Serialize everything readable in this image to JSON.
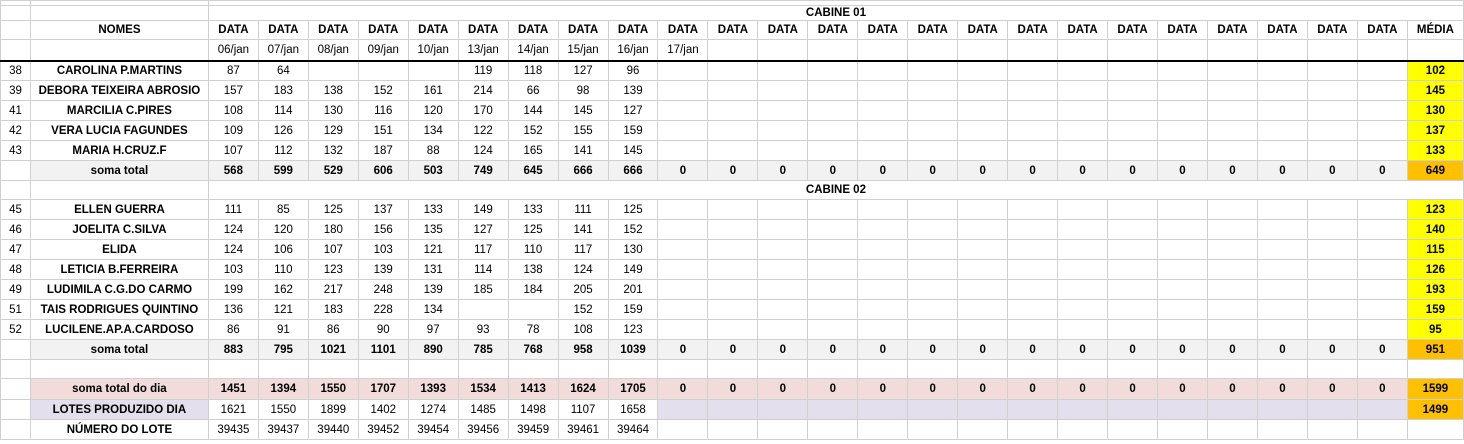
{
  "title_row": "",
  "cabine1_title": "CABINE 01",
  "cabine2_title": "CABINE 02",
  "nomes_header": "NOMES",
  "data_label": "DATA",
  "media_label": "MÉDIA",
  "dates": [
    "06/jan",
    "07/jan",
    "08/jan",
    "09/jan",
    "10/jan",
    "13/jan",
    "14/jan",
    "15/jan",
    "16/jan",
    "17/jan"
  ],
  "sum_label": "soma total",
  "cabine1_rows": [
    {
      "rn": "38",
      "name": "CAROLINA P.MARTINS",
      "vals": [
        "87",
        "64",
        "",
        "",
        "",
        "119",
        "118",
        "127",
        "96"
      ],
      "avg": "102"
    },
    {
      "rn": "39",
      "name": "DEBORA TEIXEIRA ABROSIO",
      "vals": [
        "157",
        "183",
        "138",
        "152",
        "161",
        "214",
        "66",
        "98",
        "139"
      ],
      "avg": "145"
    },
    {
      "rn": "41",
      "name": "MARCILIA C.PIRES",
      "vals": [
        "108",
        "114",
        "130",
        "116",
        "120",
        "170",
        "144",
        "145",
        "127"
      ],
      "avg": "130"
    },
    {
      "rn": "42",
      "name": "VERA LUCIA FAGUNDES",
      "vals": [
        "109",
        "126",
        "129",
        "151",
        "134",
        "122",
        "152",
        "155",
        "159"
      ],
      "avg": "137"
    },
    {
      "rn": "43",
      "name": "MARIA H.CRUZ.F",
      "vals": [
        "107",
        "112",
        "132",
        "187",
        "88",
        "124",
        "165",
        "141",
        "145"
      ],
      "avg": "133"
    }
  ],
  "cabine1_sum": {
    "vals": [
      "568",
      "599",
      "529",
      "606",
      "503",
      "749",
      "645",
      "666",
      "666"
    ],
    "zero": "0",
    "avg": "649"
  },
  "cabine2_rows": [
    {
      "rn": "45",
      "name": "ELLEN GUERRA",
      "vals": [
        "111",
        "85",
        "125",
        "137",
        "133",
        "149",
        "133",
        "111",
        "125"
      ],
      "avg": "123"
    },
    {
      "rn": "46",
      "name": "JOELITA C.SILVA",
      "vals": [
        "124",
        "120",
        "180",
        "156",
        "135",
        "127",
        "125",
        "141",
        "152"
      ],
      "avg": "140"
    },
    {
      "rn": "47",
      "name": "ELIDA",
      "vals": [
        "124",
        "106",
        "107",
        "103",
        "121",
        "117",
        "110",
        "117",
        "130"
      ],
      "avg": "115"
    },
    {
      "rn": "48",
      "name": "LETICIA B.FERREIRA",
      "vals": [
        "103",
        "110",
        "123",
        "139",
        "131",
        "114",
        "138",
        "124",
        "149"
      ],
      "avg": "126"
    },
    {
      "rn": "49",
      "name": "LUDIMILA C.G.DO CARMO",
      "vals": [
        "199",
        "162",
        "217",
        "248",
        "139",
        "185",
        "184",
        "205",
        "201"
      ],
      "avg": "193"
    },
    {
      "rn": "51",
      "name": "TAIS RODRIGUES QUINTINO",
      "vals": [
        "136",
        "121",
        "183",
        "228",
        "134",
        "",
        "",
        "152",
        "159"
      ],
      "avg": "159"
    },
    {
      "rn": "52",
      "name": "LUCILENE.AP.A.CARDOSO",
      "vals": [
        "86",
        "91",
        "86",
        "90",
        "97",
        "93",
        "78",
        "108",
        "123"
      ],
      "avg": "95"
    }
  ],
  "cabine2_sum": {
    "vals": [
      "883",
      "795",
      "1021",
      "1101",
      "890",
      "785",
      "768",
      "958",
      "1039"
    ],
    "zero": "0",
    "avg": "951"
  },
  "day_total": {
    "label": "soma total  do dia",
    "vals": [
      "1451",
      "1394",
      "1550",
      "1707",
      "1393",
      "1534",
      "1413",
      "1624",
      "1705"
    ],
    "zero": "0",
    "avg": "1599"
  },
  "lotes": {
    "label": "LOTES PRODUZIDO DIA",
    "vals": [
      "1621",
      "1550",
      "1899",
      "1402",
      "1274",
      "1485",
      "1498",
      "1107",
      "1658"
    ],
    "avg": "1499"
  },
  "numero": {
    "label": "NÚMERO DO LOTE",
    "vals": [
      "39435",
      "39437",
      "39440",
      "39452",
      "39454",
      "39456",
      "39459",
      "39461",
      "39464"
    ]
  }
}
